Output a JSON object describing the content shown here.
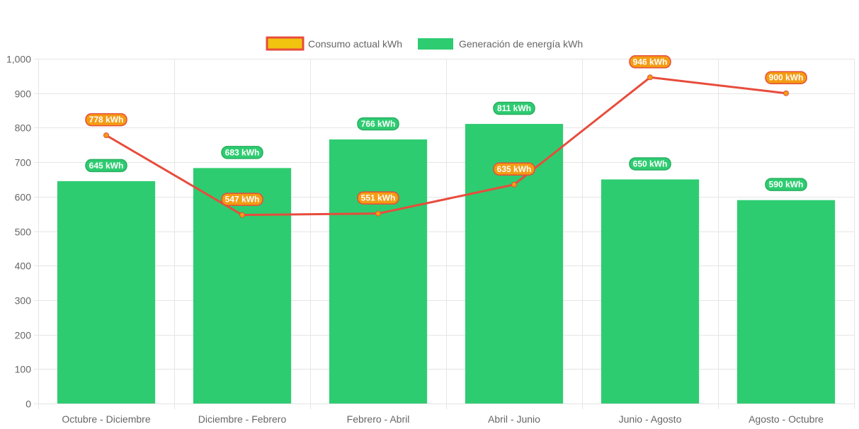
{
  "chart_data": {
    "type": "bar",
    "categories": [
      "Octubre - Diciembre",
      "Diciembre - Febrero",
      "Febrero - Abril",
      "Abril - Junio",
      "Junio - Agosto",
      "Agosto - Octubre"
    ],
    "series": [
      {
        "name": "Consumo actual kWh",
        "type": "line",
        "values": [
          778,
          547,
          551,
          635,
          946,
          900
        ],
        "labels": [
          "778 kWh",
          "547 kWh",
          "551 kWh",
          "635 kWh",
          "946 kWh",
          "900 kWh"
        ],
        "color": "#e74c3c",
        "fill_color": "#f1c40f"
      },
      {
        "name": "Generación de energía kWh",
        "type": "bar",
        "values": [
          645,
          683,
          766,
          811,
          650,
          590
        ],
        "labels": [
          "645 kWh",
          "683 kWh",
          "766 kWh",
          "811 kWh",
          "650 kWh",
          "590 kWh"
        ],
        "color": "#2ecc71"
      }
    ],
    "ylim": [
      0,
      1000
    ],
    "yticks": [
      "0",
      "100",
      "200",
      "300",
      "400",
      "500",
      "600",
      "700",
      "800",
      "900",
      "1,000"
    ],
    "ytick_values": [
      0,
      100,
      200,
      300,
      400,
      500,
      600,
      700,
      800,
      900,
      1000
    ],
    "grid": true,
    "legend_position": "top"
  }
}
